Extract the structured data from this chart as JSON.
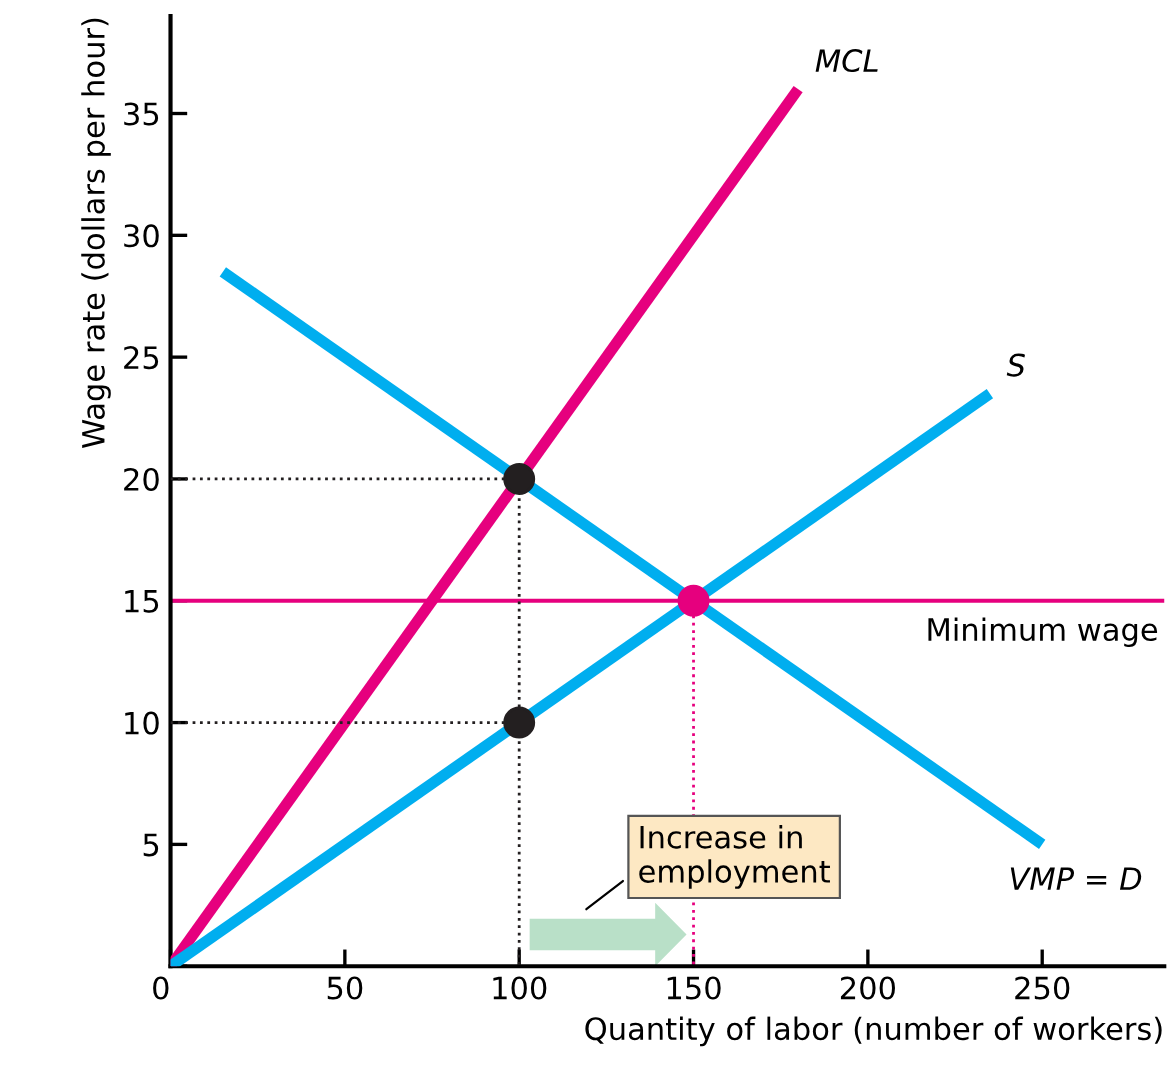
{
  "chart_data": {
    "type": "line",
    "xlabel": "Quantity of labor (number of workers)",
    "ylabel": "Wage rate (dollars per hour)",
    "xlim": [
      0,
      285
    ],
    "ylim": [
      0,
      39
    ],
    "xticks": [
      {
        "value": 0,
        "label": "0"
      },
      50,
      100,
      150,
      200,
      250
    ],
    "yticks": [
      {
        "value": 0,
        "label": null
      },
      5,
      10,
      15,
      20,
      25,
      30,
      35
    ],
    "grid": false,
    "legend": false,
    "series": [
      {
        "name": "MCL",
        "color": "#e6007e",
        "x": [
          0,
          180
        ],
        "values": [
          0,
          36
        ]
      },
      {
        "name": "S",
        "color": "#00aeef",
        "x": [
          0,
          235
        ],
        "values": [
          0,
          23.5
        ]
      },
      {
        "name": "VMP = D",
        "color": "#00aeef",
        "x": [
          15,
          250
        ],
        "values": [
          28.5,
          5
        ]
      },
      {
        "color": "#231f20",
        "line_style": "dotted",
        "x": [
          0,
          100,
          100
        ],
        "values": [
          20,
          20,
          0
        ]
      },
      {
        "color": "#231f20",
        "line_style": "dotted",
        "x": [
          0,
          100
        ],
        "values": [
          10,
          10
        ]
      },
      {
        "color": "#e6007e",
        "line_style": "dotted",
        "x": [
          150,
          150
        ],
        "values": [
          15,
          0
        ]
      },
      {
        "type": "scatter",
        "x": [
          100,
          100,
          150
        ],
        "values": [
          20,
          10,
          15
        ],
        "colors": [
          "#231f20",
          "#231f20",
          "#e6007e"
        ],
        "marker": "circle"
      }
    ],
    "ref_lines": [
      {
        "axis": "y",
        "value": 15,
        "label": "Minimum wage",
        "color": "#e6007e"
      }
    ],
    "annotations": [
      "Increase in\nemployment"
    ]
  }
}
